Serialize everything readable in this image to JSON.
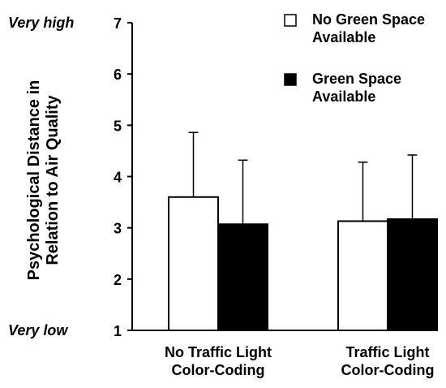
{
  "chart_data": {
    "type": "bar",
    "ylabel": [
      "Psychological Distance in",
      "Relation to Air Quality"
    ],
    "ylim": [
      1,
      7
    ],
    "yticks": [
      1,
      2,
      3,
      4,
      5,
      6,
      7
    ],
    "y_anchor_labels": {
      "high": "Very high",
      "low": "Very low"
    },
    "categories": [
      [
        "No Traffic Light",
        "Color-Coding"
      ],
      [
        "Traffic Light",
        "Color-Coding"
      ]
    ],
    "series": [
      {
        "name": [
          "No Green Space",
          "Available"
        ],
        "fill": "#ffffff",
        "values": [
          3.6,
          3.13
        ],
        "error_upper": [
          4.86,
          4.28
        ]
      },
      {
        "name": [
          "Green Space",
          "Available"
        ],
        "fill": "#000000",
        "values": [
          3.07,
          3.17
        ],
        "error_upper": [
          4.32,
          4.42
        ]
      }
    ],
    "legend_position": "top-right",
    "grid": false
  }
}
